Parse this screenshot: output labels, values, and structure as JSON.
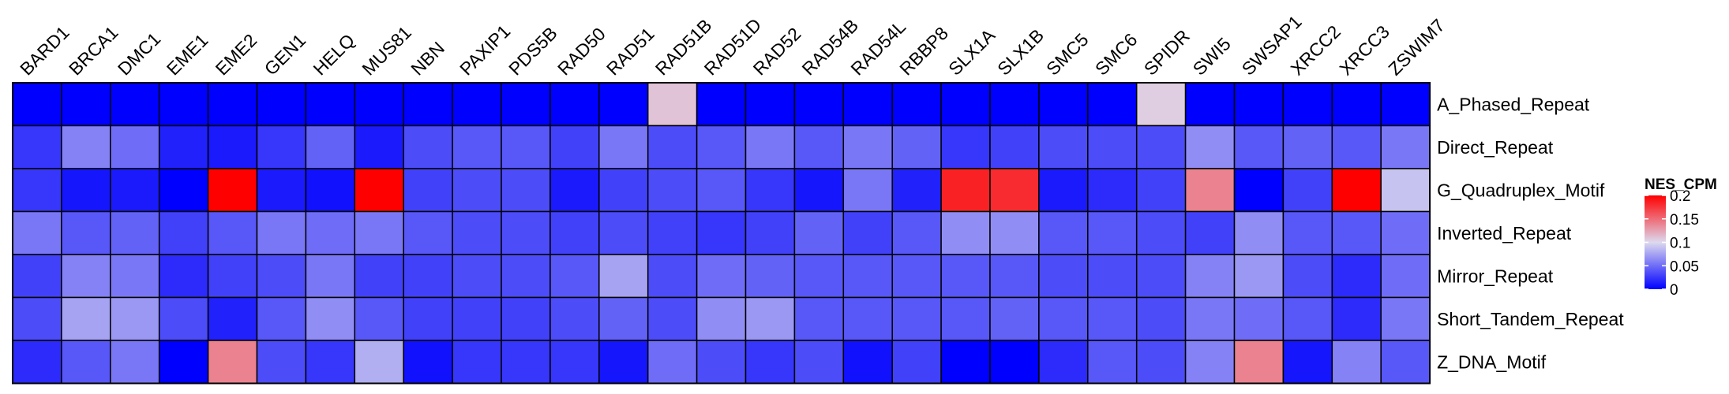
{
  "chart_data": {
    "type": "heatmap",
    "columns": [
      "BARD1",
      "BRCA1",
      "DMC1",
      "EME1",
      "EME2",
      "GEN1",
      "HELQ",
      "MUS81",
      "NBN",
      "PAXIP1",
      "PDS5B",
      "RAD50",
      "RAD51",
      "RAD51B",
      "RAD51D",
      "RAD52",
      "RAD54B",
      "RAD54L",
      "RBBP8",
      "SLX1A",
      "SLX1B",
      "SMC5",
      "SMC6",
      "SPIDR",
      "SWI5",
      "SWSAP1",
      "XRCC2",
      "XRCC3",
      "ZSWIM7"
    ],
    "rows": [
      "A_Phased_Repeat",
      "Direct_Repeat",
      "G_Quadruplex_Motif",
      "Inverted_Repeat",
      "Mirror_Repeat",
      "Short_Tandem_Repeat",
      "Z_DNA_Motif"
    ],
    "values": [
      [
        0.0,
        0.0,
        0.0,
        0.0,
        0.0,
        0.0,
        0.0,
        0.0,
        0.0,
        0.0,
        0.0,
        0.0,
        0.0,
        0.11,
        0.0,
        0.0,
        0.0,
        0.0,
        0.0,
        0.0,
        0.0,
        0.0,
        0.0,
        0.105,
        0.0,
        0.0,
        0.0,
        0.0,
        0.0
      ],
      [
        0.025,
        0.06,
        0.05,
        0.015,
        0.012,
        0.025,
        0.045,
        0.012,
        0.035,
        0.04,
        0.04,
        0.03,
        0.055,
        0.035,
        0.04,
        0.055,
        0.04,
        0.055,
        0.045,
        0.025,
        0.03,
        0.035,
        0.035,
        0.035,
        0.065,
        0.04,
        0.045,
        0.04,
        0.055
      ],
      [
        0.025,
        0.01,
        0.012,
        0.0,
        0.2,
        0.012,
        0.008,
        0.2,
        0.03,
        0.035,
        0.035,
        0.012,
        0.03,
        0.035,
        0.04,
        0.025,
        0.01,
        0.055,
        0.015,
        0.185,
        0.18,
        0.012,
        0.02,
        0.03,
        0.14,
        0.0,
        0.03,
        0.2,
        0.09
      ],
      [
        0.055,
        0.04,
        0.045,
        0.03,
        0.04,
        0.055,
        0.05,
        0.055,
        0.04,
        0.035,
        0.035,
        0.03,
        0.035,
        0.03,
        0.025,
        0.03,
        0.045,
        0.03,
        0.04,
        0.065,
        0.065,
        0.04,
        0.04,
        0.035,
        0.03,
        0.065,
        0.04,
        0.04,
        0.05
      ],
      [
        0.03,
        0.06,
        0.055,
        0.02,
        0.03,
        0.035,
        0.055,
        0.03,
        0.03,
        0.035,
        0.035,
        0.04,
        0.075,
        0.035,
        0.05,
        0.045,
        0.04,
        0.04,
        0.04,
        0.04,
        0.04,
        0.035,
        0.035,
        0.035,
        0.06,
        0.07,
        0.035,
        0.02,
        0.05
      ],
      [
        0.035,
        0.075,
        0.07,
        0.035,
        0.015,
        0.04,
        0.065,
        0.04,
        0.03,
        0.03,
        0.03,
        0.035,
        0.045,
        0.035,
        0.065,
        0.07,
        0.04,
        0.04,
        0.04,
        0.04,
        0.045,
        0.04,
        0.04,
        0.035,
        0.055,
        0.05,
        0.04,
        0.02,
        0.055
      ],
      [
        0.02,
        0.04,
        0.055,
        0.0,
        0.14,
        0.035,
        0.025,
        0.08,
        0.008,
        0.025,
        0.025,
        0.025,
        0.01,
        0.05,
        0.035,
        0.025,
        0.035,
        0.008,
        0.03,
        0.0,
        0.0,
        0.02,
        0.04,
        0.035,
        0.06,
        0.14,
        0.01,
        0.06,
        0.04
      ]
    ],
    "color_scale": {
      "min": 0,
      "max": 0.2,
      "low_color": "#0000ff",
      "mid_color": "#ddd9ee",
      "mid_value": 0.1,
      "high_color": "#ff0000"
    },
    "legend": {
      "title": "NES_CPM",
      "ticks": [
        0.2,
        0.15,
        0.1,
        0.05,
        0
      ],
      "tick_labels": [
        "0.2",
        "0.15",
        "0.1",
        "0.05",
        "0"
      ],
      "position": "right"
    }
  }
}
